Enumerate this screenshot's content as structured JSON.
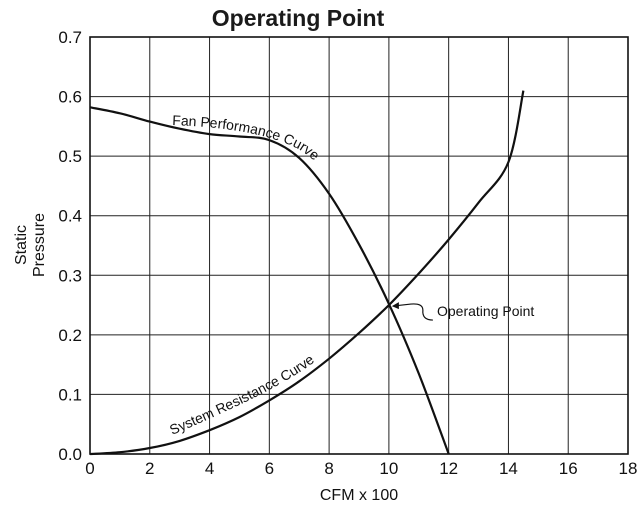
{
  "chart_data": {
    "type": "line",
    "title": "Operating Point",
    "xlabel": "CFM x 100",
    "ylabel_lines": [
      "Static",
      "Pressure"
    ],
    "xlim": [
      0,
      18
    ],
    "ylim": [
      0,
      0.7
    ],
    "x_ticks": [
      0,
      2,
      4,
      6,
      8,
      10,
      12,
      14,
      16,
      18
    ],
    "y_ticks": [
      0.0,
      0.1,
      0.2,
      0.3,
      0.4,
      0.5,
      0.6,
      0.7
    ],
    "x_tick_labels": [
      "0",
      "2",
      "4",
      "6",
      "8",
      "10",
      "12",
      "14",
      "16",
      "18"
    ],
    "y_tick_labels": [
      "0.0",
      "0.1",
      "0.2",
      "0.3",
      "0.4",
      "0.5",
      "0.6",
      "0.7"
    ],
    "grid": true,
    "series": [
      {
        "name": "Fan Performance Curve",
        "points": [
          [
            0,
            0.582
          ],
          [
            1,
            0.572
          ],
          [
            2,
            0.558
          ],
          [
            3,
            0.546
          ],
          [
            4,
            0.537
          ],
          [
            5,
            0.533
          ],
          [
            6,
            0.527
          ],
          [
            7,
            0.497
          ],
          [
            8,
            0.437
          ],
          [
            9,
            0.352
          ],
          [
            10,
            0.252
          ],
          [
            11,
            0.135
          ],
          [
            12,
            0.0
          ]
        ]
      },
      {
        "name": "System Resistance Curve",
        "points": [
          [
            0,
            0.0
          ],
          [
            1,
            0.003
          ],
          [
            2,
            0.01
          ],
          [
            3,
            0.022
          ],
          [
            4,
            0.04
          ],
          [
            5,
            0.062
          ],
          [
            6,
            0.09
          ],
          [
            7,
            0.122
          ],
          [
            8,
            0.16
          ],
          [
            9,
            0.203
          ],
          [
            10,
            0.25
          ],
          [
            11,
            0.303
          ],
          [
            12,
            0.36
          ],
          [
            13,
            0.422
          ],
          [
            14,
            0.49
          ],
          [
            14.5,
            0.61
          ]
        ]
      }
    ],
    "annotation": {
      "label": "Operating Point",
      "x": 10,
      "y": 0.25
    },
    "line_color": "#111111",
    "grid_color": "#222222"
  }
}
